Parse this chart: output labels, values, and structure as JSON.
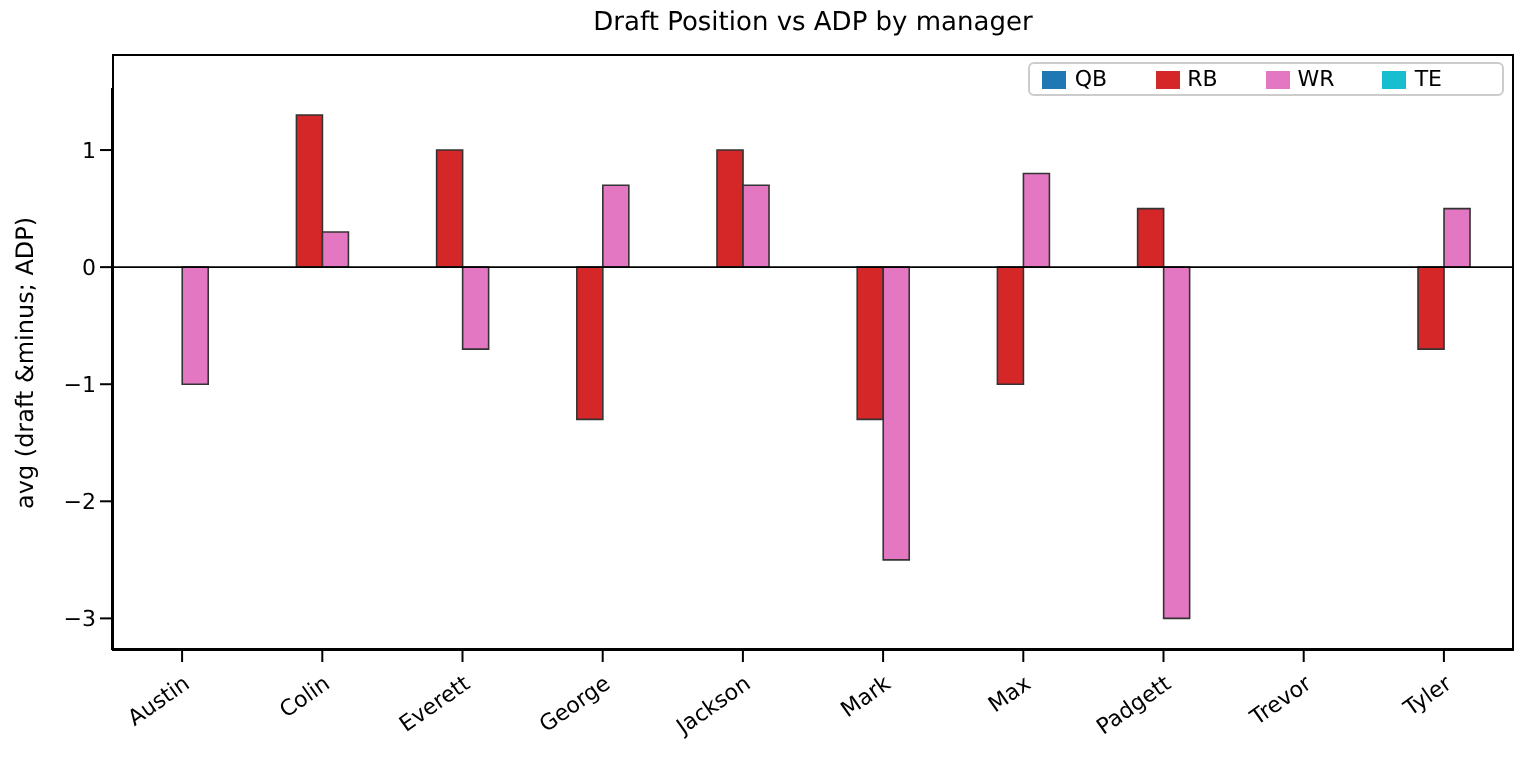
{
  "chart_data": {
    "type": "bar",
    "title": "Draft Position vs ADP by manager",
    "ylabel": "avg (draft &minus; ADP)",
    "categories": [
      "Austin",
      "Colin",
      "Everett",
      "George",
      "Jackson",
      "Mark",
      "Max",
      "Padgett",
      "Trevor",
      "Tyler"
    ],
    "series": [
      {
        "name": "QB",
        "color": "#1f77b4",
        "values": [
          0,
          0,
          0,
          0,
          0,
          0,
          0,
          0,
          0,
          0
        ]
      },
      {
        "name": "RB",
        "color": "#d62728",
        "values": [
          0,
          1.3,
          1.0,
          -1.3,
          1.0,
          -1.3,
          -1.0,
          0.5,
          0,
          -0.7
        ]
      },
      {
        "name": "WR",
        "color": "#e377c2",
        "values": [
          -1.0,
          0.3,
          -0.7,
          0.7,
          0.7,
          -2.5,
          0.8,
          -3.0,
          0,
          0.5
        ]
      },
      {
        "name": "TE",
        "color": "#17becf",
        "values": [
          0,
          0,
          0,
          0,
          0,
          0,
          0,
          0,
          0,
          0
        ]
      }
    ],
    "ylim": [
      -3.27,
      1.53
    ],
    "yticks": [
      -3,
      -2,
      -1,
      0,
      1
    ],
    "grid": false,
    "legend": "top right",
    "ref_lines": [
      {
        "axis": "y",
        "value": 0,
        "color": "#000000"
      }
    ]
  }
}
